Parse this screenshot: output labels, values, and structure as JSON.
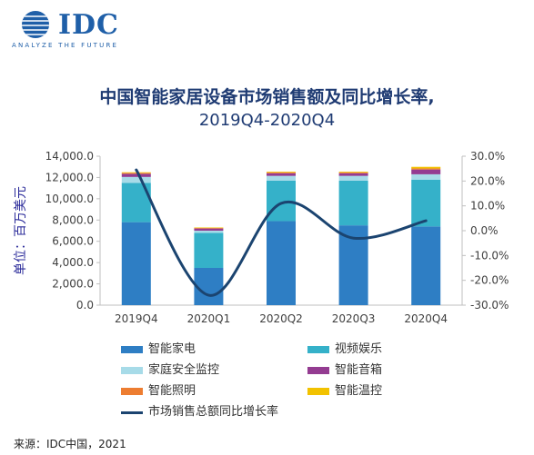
{
  "brand": {
    "name": "IDC",
    "tagline": "ANALYZE THE FUTURE"
  },
  "chart_data": {
    "type": "bar",
    "stacked": true,
    "title": "中国智能家居设备市场销售额及同比增长率,",
    "subtitle": "2019Q4-2020Q4",
    "ylabel": "单位：百万美元",
    "categories": [
      "2019Q4",
      "2020Q1",
      "2020Q2",
      "2020Q3",
      "2020Q4"
    ],
    "ylim": [
      0,
      14000
    ],
    "y_ticks": [
      "0.0",
      "2,000.0",
      "4,000.0",
      "6,000.0",
      "8,000.0",
      "10,000.0",
      "12,000.0",
      "14,000.0"
    ],
    "y2lim": [
      -30,
      30
    ],
    "y2_ticks": [
      "-30.0%",
      "-20.0%",
      "-10.0%",
      "0.0%",
      "10.0%",
      "20.0%",
      "30.0%"
    ],
    "series": [
      {
        "name": "智能家电",
        "color": "#2e7ec4",
        "values": [
          7800,
          3500,
          7900,
          7500,
          7400
        ]
      },
      {
        "name": "视频娱乐",
        "color": "#35b1c9",
        "values": [
          3700,
          3300,
          3800,
          4200,
          4400
        ]
      },
      {
        "name": "家庭安全监控",
        "color": "#a7dbe8",
        "values": [
          550,
          200,
          450,
          450,
          500
        ]
      },
      {
        "name": "智能音箱",
        "color": "#943c91",
        "values": [
          300,
          200,
          250,
          250,
          450
        ]
      },
      {
        "name": "智能照明",
        "color": "#ed7d31",
        "values": [
          80,
          60,
          80,
          80,
          100
        ]
      },
      {
        "name": "智能温控",
        "color": "#f2c200",
        "values": [
          60,
          40,
          70,
          70,
          150
        ]
      }
    ],
    "line_series": {
      "name": "市场销售总额同比增长率",
      "color": "#1b4470",
      "axis": "right",
      "values": [
        24.5,
        -26,
        11,
        -3,
        4
      ]
    },
    "grid": false,
    "legend_position": "bottom"
  },
  "source": "来源：IDC中国，2021"
}
